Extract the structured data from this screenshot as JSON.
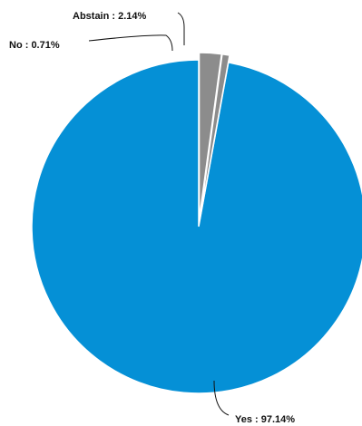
{
  "chart_data": {
    "type": "pie",
    "slices": [
      {
        "label": "Yes",
        "value": 97.14,
        "display": "Yes : 97.14%",
        "color": "#0590d6"
      },
      {
        "label": "No",
        "value": 0.71,
        "display": "No : 0.71%",
        "color": "#8c8c8c"
      },
      {
        "label": "Abstain",
        "value": 2.14,
        "display": "Abstain : 2.14%",
        "color": "#8c8c8c"
      }
    ],
    "start": "12 o'clock",
    "direction": "counterclockwise",
    "slice_border": "#ffffff",
    "leader_color": "#111111"
  }
}
